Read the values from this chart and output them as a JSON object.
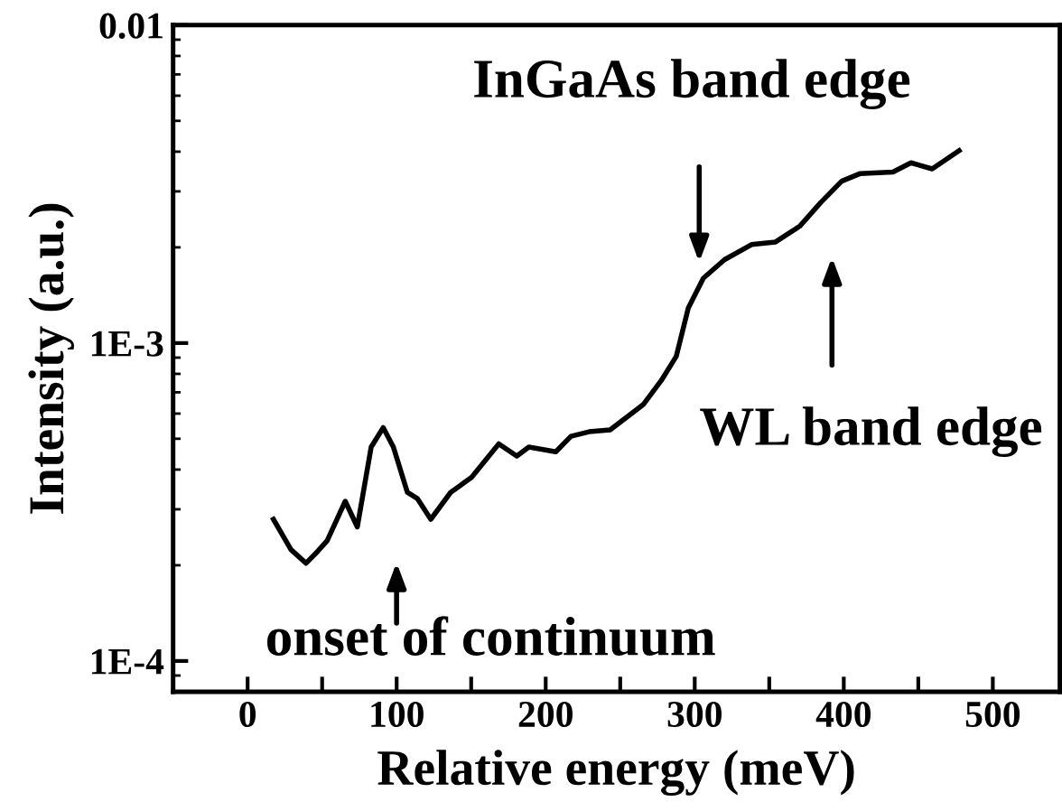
{
  "chart_data": {
    "type": "line",
    "xlabel": "Relative energy (meV)",
    "ylabel": "Intensity (a.u.)",
    "log": "y",
    "xlim": [
      -50,
      545
    ],
    "xticks": [
      0,
      {
        "value": 50,
        "label": null
      },
      100,
      {
        "value": 150,
        "label": null
      },
      200,
      {
        "value": 250,
        "label": null
      },
      300,
      {
        "value": 350,
        "label": null
      },
      400,
      {
        "value": 450,
        "label": null
      },
      500
    ],
    "ylim": [
      8e-05,
      0.01
    ],
    "yticks": [
      {
        "value": 0.0001,
        "label": "1E-4"
      },
      {
        "value": 0.001,
        "label": "1E-3"
      },
      {
        "value": 0.01,
        "label": "0.01"
      }
    ],
    "grid": false,
    "legend": false,
    "marker": "none",
    "line_style": "solid",
    "series": [
      {
        "color": "#000000",
        "x": [
          17.3,
          29.1,
          39.2,
          47.3,
          53.4,
          65.5,
          73.6,
          82.9,
          91.0,
          97.8,
          107.2,
          114.0,
          122.9,
          136.2,
          150.3,
          168.5,
          180.6,
          188.7,
          206.8,
          216.9,
          229.0,
          243.2,
          257.3,
          265.4,
          277.5,
          287.6,
          295.7,
          305.8,
          320.0,
          338.1,
          354.2,
          370.4,
          384.6,
          398.6,
          410.7,
          433.0,
          445.1,
          459.3,
          477.4
        ],
        "values": [
          0.000279,
          0.000224,
          0.000203,
          0.000222,
          0.000239,
          0.000318,
          0.000264,
          0.000471,
          0.000542,
          0.000471,
          0.000339,
          0.000324,
          0.000279,
          0.000339,
          0.000378,
          0.000482,
          0.000441,
          0.000471,
          0.000455,
          0.000509,
          0.000526,
          0.000533,
          0.000599,
          0.00064,
          0.000762,
          0.000908,
          0.00129,
          0.0016,
          0.00183,
          0.00204,
          0.00208,
          0.00233,
          0.00277,
          0.00323,
          0.00341,
          0.00345,
          0.00369,
          0.00353,
          0.00403
        ]
      }
    ],
    "annotations": [
      {
        "text": "InGaAs band edge",
        "x": 303,
        "y": 0.00167
      },
      "WL band edge",
      "onset of continuum"
    ]
  }
}
